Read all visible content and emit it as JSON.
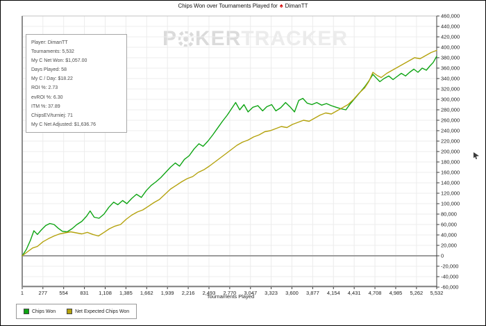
{
  "title": {
    "prefix": "Chips Won over Tournaments Played for",
    "icon": "spade-icon",
    "player": "DimanTT"
  },
  "watermark": {
    "poker": "P",
    "poker_rest": "KER",
    "tracker": "TRACKER"
  },
  "stats_box": {
    "rows": [
      "Player: DimanTT",
      "Tournaments: 5,532",
      "My C Net Won: $1,057.00",
      "Days Played: 58",
      "My C / Day: $18.22",
      "ROI %: 2.73",
      "evROI %: 6.30",
      "ITM %: 37.89",
      "ChipsEV/turniej: 71",
      "My C Net Adjusted: $1,636.76"
    ]
  },
  "legend": {
    "items": [
      {
        "label": "Chips Won",
        "color": "#0da412"
      },
      {
        "label": "Net Expected Chips Won",
        "color": "#b4a20c"
      }
    ]
  },
  "chart_data": {
    "type": "line",
    "title": "Chips Won over Tournaments Played for DimanTT",
    "xlabel": "Tournaments Played",
    "ylabel": "",
    "xlim": [
      1,
      5532
    ],
    "ylim": [
      -60000,
      460000
    ],
    "grid": true,
    "legend_position": "bottom-left",
    "zero_line": 0,
    "x_ticks": [
      [
        1,
        "1"
      ],
      [
        277,
        "277"
      ],
      [
        554,
        "554"
      ],
      [
        831,
        "831"
      ],
      [
        1108,
        "1,108"
      ],
      [
        1385,
        "1,385"
      ],
      [
        1662,
        "1,662"
      ],
      [
        1939,
        "1,939"
      ],
      [
        2216,
        "2,216"
      ],
      [
        2493,
        "2,493"
      ],
      [
        2770,
        "2,770"
      ],
      [
        3047,
        "3,047"
      ],
      [
        3323,
        "3,323"
      ],
      [
        3600,
        "3,600"
      ],
      [
        3877,
        "3,877"
      ],
      [
        4154,
        "4,154"
      ],
      [
        4431,
        "4,431"
      ],
      [
        4708,
        "4,708"
      ],
      [
        4985,
        "4,985"
      ],
      [
        5262,
        "5,262"
      ],
      [
        5532,
        "5,532"
      ]
    ],
    "y_ticks": [
      [
        460000,
        "460,000"
      ],
      [
        440000,
        "440,000"
      ],
      [
        420000,
        "420,000"
      ],
      [
        400000,
        "400,000"
      ],
      [
        380000,
        "380,000"
      ],
      [
        360000,
        "360,000"
      ],
      [
        340000,
        "340,000"
      ],
      [
        320000,
        "320,000"
      ],
      [
        300000,
        "300,000"
      ],
      [
        280000,
        "280,000"
      ],
      [
        260000,
        "260,000"
      ],
      [
        240000,
        "240,000"
      ],
      [
        220000,
        "220,000"
      ],
      [
        200000,
        "200,000"
      ],
      [
        180000,
        "180,000"
      ],
      [
        160000,
        "160,000"
      ],
      [
        140000,
        "140,000"
      ],
      [
        120000,
        "120,000"
      ],
      [
        100000,
        "100,000"
      ],
      [
        80000,
        "80,000"
      ],
      [
        60000,
        "60,000"
      ],
      [
        40000,
        "40,000"
      ],
      [
        20000,
        "20,000"
      ],
      [
        0,
        "0"
      ],
      [
        -20000,
        "-20,000"
      ],
      [
        -40000,
        "-40,000"
      ],
      [
        -60000,
        "-60,000"
      ]
    ],
    "series": [
      {
        "name": "Chips Won",
        "color": "#0da412",
        "points": [
          [
            1,
            0
          ],
          [
            56,
            12000
          ],
          [
            111,
            30000
          ],
          [
            157,
            48000
          ],
          [
            204,
            41000
          ],
          [
            259,
            50000
          ],
          [
            314,
            58000
          ],
          [
            370,
            62000
          ],
          [
            426,
            60000
          ],
          [
            481,
            53000
          ],
          [
            537,
            47000
          ],
          [
            601,
            46000
          ],
          [
            666,
            52000
          ],
          [
            731,
            60000
          ],
          [
            796,
            66000
          ],
          [
            860,
            76000
          ],
          [
            907,
            86000
          ],
          [
            962,
            74000
          ],
          [
            1027,
            72000
          ],
          [
            1092,
            80000
          ],
          [
            1156,
            93000
          ],
          [
            1221,
            103000
          ],
          [
            1277,
            98000
          ],
          [
            1341,
            106000
          ],
          [
            1397,
            100000
          ],
          [
            1462,
            110000
          ],
          [
            1526,
            118000
          ],
          [
            1591,
            112000
          ],
          [
            1656,
            125000
          ],
          [
            1721,
            135000
          ],
          [
            1786,
            142000
          ],
          [
            1850,
            150000
          ],
          [
            1915,
            160000
          ],
          [
            1980,
            170000
          ],
          [
            2044,
            178000
          ],
          [
            2100,
            172000
          ],
          [
            2165,
            185000
          ],
          [
            2229,
            192000
          ],
          [
            2294,
            205000
          ],
          [
            2359,
            215000
          ],
          [
            2414,
            210000
          ],
          [
            2479,
            220000
          ],
          [
            2544,
            232000
          ],
          [
            2608,
            245000
          ],
          [
            2673,
            258000
          ],
          [
            2738,
            270000
          ],
          [
            2793,
            282000
          ],
          [
            2849,
            294000
          ],
          [
            2904,
            280000
          ],
          [
            2960,
            290000
          ],
          [
            3015,
            276000
          ],
          [
            3080,
            285000
          ],
          [
            3145,
            288000
          ],
          [
            3209,
            278000
          ],
          [
            3265,
            286000
          ],
          [
            3330,
            290000
          ],
          [
            3385,
            278000
          ],
          [
            3450,
            284000
          ],
          [
            3515,
            294000
          ],
          [
            3580,
            285000
          ],
          [
            3635,
            276000
          ],
          [
            3691,
            298000
          ],
          [
            3746,
            302000
          ],
          [
            3802,
            293000
          ],
          [
            3866,
            290000
          ],
          [
            3931,
            294000
          ],
          [
            3996,
            289000
          ],
          [
            4061,
            292000
          ],
          [
            4126,
            288000
          ],
          [
            4190,
            285000
          ],
          [
            4255,
            282000
          ],
          [
            4320,
            280000
          ],
          [
            4375,
            291000
          ],
          [
            4440,
            302000
          ],
          [
            4505,
            313000
          ],
          [
            4570,
            324000
          ],
          [
            4625,
            335000
          ],
          [
            4681,
            348000
          ],
          [
            4727,
            341000
          ],
          [
            4773,
            334000
          ],
          [
            4829,
            340000
          ],
          [
            4893,
            345000
          ],
          [
            4949,
            338000
          ],
          [
            5004,
            344000
          ],
          [
            5060,
            350000
          ],
          [
            5116,
            345000
          ],
          [
            5171,
            352000
          ],
          [
            5227,
            358000
          ],
          [
            5282,
            352000
          ],
          [
            5338,
            360000
          ],
          [
            5394,
            356000
          ],
          [
            5440,
            364000
          ],
          [
            5486,
            371000
          ],
          [
            5532,
            383000
          ]
        ]
      },
      {
        "name": "Net Expected Chips Won",
        "color": "#b4a20c",
        "points": [
          [
            1,
            0
          ],
          [
            74,
            8000
          ],
          [
            139,
            15000
          ],
          [
            204,
            18000
          ],
          [
            278,
            27000
          ],
          [
            352,
            33000
          ],
          [
            426,
            38000
          ],
          [
            500,
            42000
          ],
          [
            574,
            44000
          ],
          [
            648,
            46000
          ],
          [
            722,
            44000
          ],
          [
            796,
            42000
          ],
          [
            870,
            45000
          ],
          [
            944,
            41000
          ],
          [
            1018,
            38000
          ],
          [
            1092,
            45000
          ],
          [
            1166,
            52000
          ],
          [
            1240,
            57000
          ],
          [
            1314,
            60000
          ],
          [
            1388,
            70000
          ],
          [
            1462,
            78000
          ],
          [
            1536,
            84000
          ],
          [
            1610,
            88000
          ],
          [
            1684,
            95000
          ],
          [
            1758,
            102000
          ],
          [
            1832,
            108000
          ],
          [
            1906,
            118000
          ],
          [
            1980,
            128000
          ],
          [
            2054,
            135000
          ],
          [
            2128,
            142000
          ],
          [
            2202,
            148000
          ],
          [
            2276,
            152000
          ],
          [
            2350,
            160000
          ],
          [
            2424,
            165000
          ],
          [
            2498,
            172000
          ],
          [
            2572,
            180000
          ],
          [
            2646,
            188000
          ],
          [
            2720,
            196000
          ],
          [
            2793,
            204000
          ],
          [
            2867,
            212000
          ],
          [
            2941,
            218000
          ],
          [
            3015,
            222000
          ],
          [
            3089,
            228000
          ],
          [
            3163,
            232000
          ],
          [
            3237,
            238000
          ],
          [
            3311,
            240000
          ],
          [
            3385,
            244000
          ],
          [
            3459,
            248000
          ],
          [
            3533,
            246000
          ],
          [
            3607,
            252000
          ],
          [
            3681,
            256000
          ],
          [
            3755,
            260000
          ],
          [
            3829,
            258000
          ],
          [
            3903,
            264000
          ],
          [
            3977,
            270000
          ],
          [
            4051,
            274000
          ],
          [
            4126,
            272000
          ],
          [
            4200,
            278000
          ],
          [
            4274,
            284000
          ],
          [
            4348,
            290000
          ],
          [
            4422,
            300000
          ],
          [
            4496,
            312000
          ],
          [
            4570,
            322000
          ],
          [
            4625,
            334000
          ],
          [
            4681,
            352000
          ],
          [
            4736,
            346000
          ],
          [
            4792,
            342000
          ],
          [
            4866,
            350000
          ],
          [
            4940,
            356000
          ],
          [
            5014,
            362000
          ],
          [
            5088,
            368000
          ],
          [
            5162,
            374000
          ],
          [
            5236,
            380000
          ],
          [
            5310,
            378000
          ],
          [
            5384,
            384000
          ],
          [
            5458,
            390000
          ],
          [
            5532,
            394000
          ]
        ]
      }
    ]
  },
  "colors": {
    "grid": "#ececec",
    "zero_line": "#9b9b9b",
    "axis": "#3c3c3c",
    "plot_border": "#c0c0c0",
    "thick_border": "#8c8c8c",
    "tick_text": "#222222"
  }
}
